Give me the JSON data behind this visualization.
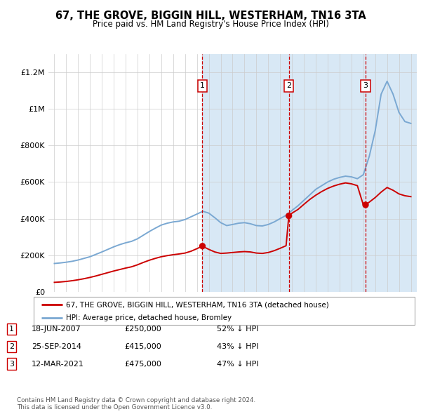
{
  "title": "67, THE GROVE, BIGGIN HILL, WESTERHAM, TN16 3TA",
  "subtitle": "Price paid vs. HM Land Registry's House Price Index (HPI)",
  "legend_line1": "67, THE GROVE, BIGGIN HILL, WESTERHAM, TN16 3TA (detached house)",
  "legend_line2": "HPI: Average price, detached house, Bromley",
  "footer": "Contains HM Land Registry data © Crown copyright and database right 2024.\nThis data is licensed under the Open Government Licence v3.0.",
  "transactions": [
    {
      "num": 1,
      "date": "18-JUN-2007",
      "price": 250000,
      "pct": "52%",
      "dir": "↓"
    },
    {
      "num": 2,
      "date": "25-SEP-2014",
      "price": 415000,
      "pct": "43%",
      "dir": "↓"
    },
    {
      "num": 3,
      "date": "12-MAR-2021",
      "price": 475000,
      "pct": "47%",
      "dir": "↓"
    }
  ],
  "sale_dates": [
    2007.46,
    2014.73,
    2021.19
  ],
  "sale_prices": [
    250000,
    415000,
    475000
  ],
  "hpi_color": "#7aa8d2",
  "price_color": "#cc0000",
  "vline_color": "#cc0000",
  "shade_color": "#d8e8f5",
  "hpi_years": [
    1995.0,
    1995.5,
    1996.0,
    1996.5,
    1997.0,
    1997.5,
    1998.0,
    1998.5,
    1999.0,
    1999.5,
    2000.0,
    2000.5,
    2001.0,
    2001.5,
    2002.0,
    2002.5,
    2003.0,
    2003.5,
    2004.0,
    2004.5,
    2005.0,
    2005.5,
    2006.0,
    2006.5,
    2007.0,
    2007.5,
    2008.0,
    2008.5,
    2009.0,
    2009.5,
    2010.0,
    2010.5,
    2011.0,
    2011.5,
    2012.0,
    2012.5,
    2013.0,
    2013.5,
    2014.0,
    2014.5,
    2015.0,
    2015.5,
    2016.0,
    2016.5,
    2017.0,
    2017.5,
    2018.0,
    2018.5,
    2019.0,
    2019.5,
    2020.0,
    2020.5,
    2021.0,
    2021.5,
    2022.0,
    2022.5,
    2023.0,
    2023.5,
    2024.0,
    2024.5,
    2025.0
  ],
  "hpi_values": [
    155000,
    158000,
    162000,
    167000,
    174000,
    183000,
    192000,
    205000,
    218000,
    232000,
    246000,
    258000,
    268000,
    276000,
    290000,
    310000,
    330000,
    348000,
    365000,
    375000,
    382000,
    386000,
    395000,
    410000,
    425000,
    440000,
    430000,
    405000,
    378000,
    362000,
    368000,
    375000,
    378000,
    372000,
    362000,
    360000,
    368000,
    382000,
    400000,
    418000,
    445000,
    470000,
    500000,
    530000,
    560000,
    580000,
    600000,
    615000,
    625000,
    632000,
    628000,
    618000,
    640000,
    740000,
    880000,
    1080000,
    1150000,
    1080000,
    980000,
    930000,
    920000
  ],
  "price_years": [
    1995.0,
    1995.5,
    1996.0,
    1996.5,
    1997.0,
    1997.5,
    1998.0,
    1998.5,
    1999.0,
    1999.5,
    2000.0,
    2000.5,
    2001.0,
    2001.5,
    2002.0,
    2002.5,
    2003.0,
    2003.5,
    2004.0,
    2004.5,
    2005.0,
    2005.5,
    2006.0,
    2006.5,
    2007.0,
    2007.46,
    2007.5,
    2008.0,
    2008.5,
    2009.0,
    2009.5,
    2010.0,
    2010.5,
    2011.0,
    2011.5,
    2012.0,
    2012.5,
    2013.0,
    2013.5,
    2014.0,
    2014.5,
    2014.73,
    2015.0,
    2015.5,
    2016.0,
    2016.5,
    2017.0,
    2017.5,
    2018.0,
    2018.5,
    2019.0,
    2019.5,
    2020.0,
    2020.5,
    2021.0,
    2021.19,
    2021.5,
    2022.0,
    2022.5,
    2023.0,
    2023.5,
    2024.0,
    2024.5,
    2025.0
  ],
  "price_values": [
    52000,
    54000,
    57000,
    61000,
    66000,
    72000,
    79000,
    87000,
    96000,
    105000,
    114000,
    122000,
    130000,
    137000,
    148000,
    161000,
    173000,
    183000,
    192000,
    198000,
    203000,
    207000,
    212000,
    222000,
    236000,
    250000,
    248000,
    232000,
    218000,
    210000,
    212000,
    215000,
    218000,
    220000,
    218000,
    212000,
    210000,
    215000,
    225000,
    238000,
    252000,
    415000,
    430000,
    450000,
    478000,
    505000,
    528000,
    548000,
    565000,
    578000,
    588000,
    595000,
    590000,
    580000,
    475000,
    475000,
    490000,
    515000,
    545000,
    570000,
    555000,
    535000,
    525000,
    520000
  ],
  "ylim_max": 1300000,
  "xlim_start": 1994.5,
  "xlim_end": 2025.5,
  "yticks": [
    0,
    200000,
    400000,
    600000,
    800000,
    1000000,
    1200000
  ],
  "ytick_labels": [
    "£0",
    "£200K",
    "£400K",
    "£600K",
    "£800K",
    "£1M",
    "£1.2M"
  ],
  "xticks": [
    1995,
    1996,
    1997,
    1998,
    1999,
    2000,
    2001,
    2002,
    2003,
    2004,
    2005,
    2006,
    2007,
    2008,
    2009,
    2010,
    2011,
    2012,
    2013,
    2014,
    2015,
    2016,
    2017,
    2018,
    2019,
    2020,
    2021,
    2022,
    2023,
    2024,
    2025
  ]
}
